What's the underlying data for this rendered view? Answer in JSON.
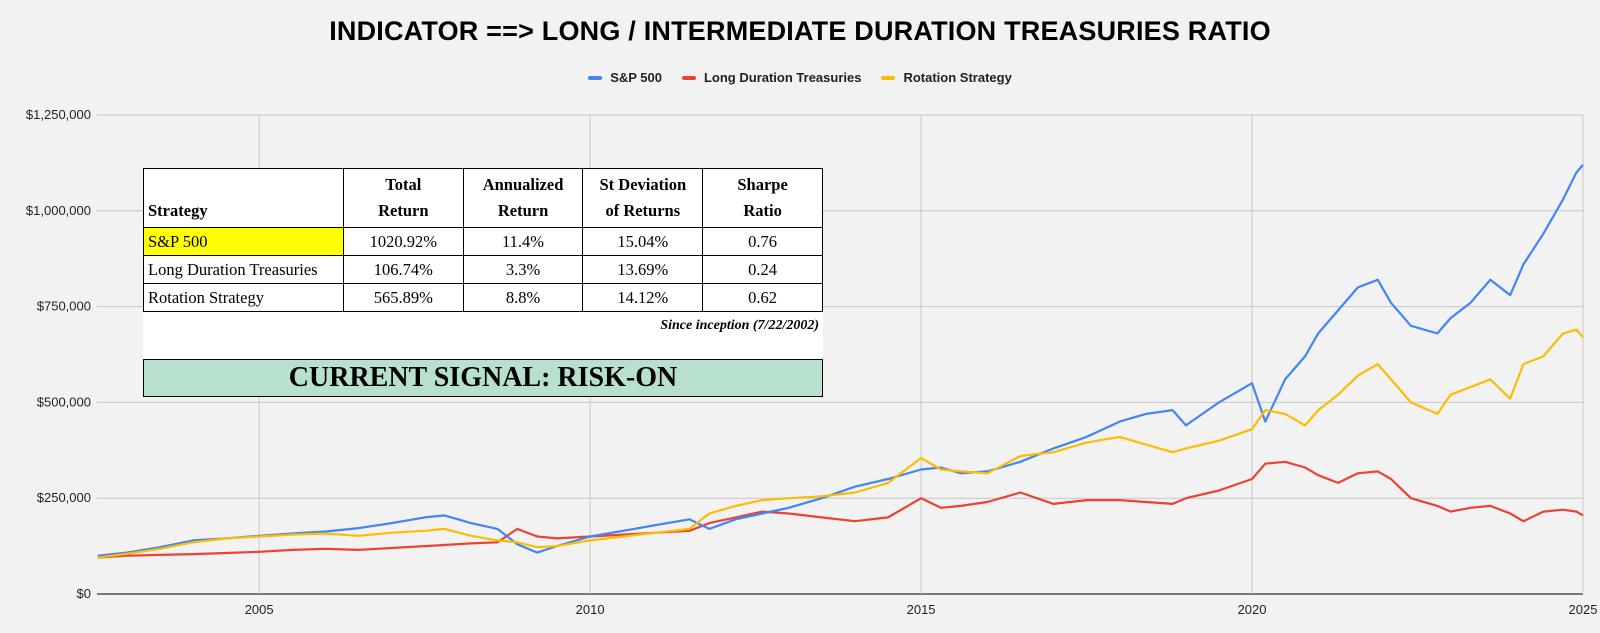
{
  "chart_data": {
    "type": "line",
    "title": "INDICATOR ==> LONG / INTERMEDIATE DURATION TREASURIES RATIO",
    "xlabel": "",
    "ylabel": "",
    "xlim": [
      2002.55,
      2025.0
    ],
    "ylim": [
      0,
      1250000
    ],
    "x_ticks": [
      "2005",
      "2010",
      "2015",
      "2020",
      "2025"
    ],
    "y_ticks": [
      "$0",
      "$250,000",
      "$500,000",
      "$750,000",
      "$1,000,000",
      "$1,250,000"
    ],
    "grid": true,
    "legend_position": "top",
    "x": [
      2002.56,
      2003,
      2003.5,
      2004,
      2004.5,
      2005,
      2005.5,
      2006,
      2006.5,
      2007,
      2007.5,
      2007.8,
      2008.2,
      2008.6,
      2008.9,
      2009.2,
      2009.5,
      2010,
      2010.5,
      2011,
      2011.5,
      2011.8,
      2012.2,
      2012.6,
      2013,
      2013.5,
      2014,
      2014.5,
      2015,
      2015.3,
      2015.6,
      2016,
      2016.5,
      2017,
      2017.5,
      2018,
      2018.4,
      2018.8,
      2019,
      2019.5,
      2020,
      2020.2,
      2020.5,
      2020.8,
      2021,
      2021.3,
      2021.6,
      2021.9,
      2022.1,
      2022.4,
      2022.8,
      2023,
      2023.3,
      2023.6,
      2023.9,
      2024.1,
      2024.4,
      2024.7,
      2024.9,
      2025
    ],
    "series": [
      {
        "name": "S&P 500",
        "color": "#4285f4",
        "values": [
          100000,
          108000,
          122000,
          140000,
          145000,
          152000,
          158000,
          163000,
          172000,
          185000,
          200000,
          205000,
          185000,
          170000,
          130000,
          108000,
          125000,
          150000,
          165000,
          180000,
          195000,
          170000,
          195000,
          210000,
          225000,
          250000,
          280000,
          300000,
          325000,
          330000,
          315000,
          320000,
          345000,
          380000,
          410000,
          450000,
          470000,
          480000,
          440000,
          500000,
          550000,
          450000,
          560000,
          620000,
          680000,
          740000,
          800000,
          820000,
          760000,
          700000,
          680000,
          720000,
          760000,
          820000,
          780000,
          860000,
          940000,
          1030000,
          1100000,
          1120000
        ]
      },
      {
        "name": "Long Duration Treasuries",
        "color": "#ea4335",
        "values": [
          95000,
          100000,
          102000,
          104000,
          107000,
          110000,
          115000,
          118000,
          115000,
          120000,
          125000,
          128000,
          132000,
          135000,
          170000,
          150000,
          145000,
          150000,
          155000,
          160000,
          165000,
          185000,
          200000,
          215000,
          210000,
          200000,
          190000,
          200000,
          250000,
          225000,
          230000,
          240000,
          265000,
          235000,
          245000,
          245000,
          240000,
          235000,
          250000,
          270000,
          300000,
          340000,
          345000,
          330000,
          310000,
          290000,
          315000,
          320000,
          300000,
          250000,
          230000,
          215000,
          225000,
          230000,
          210000,
          190000,
          215000,
          220000,
          215000,
          205000
        ]
      },
      {
        "name": "Rotation Strategy",
        "color": "#fbbc04",
        "values": [
          95000,
          105000,
          118000,
          135000,
          145000,
          150000,
          155000,
          158000,
          152000,
          160000,
          165000,
          170000,
          152000,
          140000,
          135000,
          122000,
          125000,
          140000,
          150000,
          160000,
          170000,
          210000,
          230000,
          245000,
          250000,
          255000,
          265000,
          290000,
          355000,
          325000,
          320000,
          315000,
          360000,
          370000,
          395000,
          410000,
          390000,
          370000,
          380000,
          400000,
          430000,
          480000,
          470000,
          440000,
          480000,
          520000,
          570000,
          600000,
          560000,
          500000,
          470000,
          520000,
          540000,
          560000,
          510000,
          600000,
          620000,
          680000,
          690000,
          670000
        ]
      }
    ]
  },
  "table": {
    "headers": {
      "strategy": "Strategy",
      "total_1": "Total",
      "total_2": "Return",
      "annual_1": "Annualized",
      "annual_2": "Return",
      "stdev_1": "St Deviation",
      "stdev_2": "of Returns",
      "sharpe_1": "Sharpe",
      "sharpe_2": "Ratio"
    },
    "rows": [
      {
        "strategy": "S&P 500",
        "total": "1020.92%",
        "annual": "11.4%",
        "stdev": "15.04%",
        "sharpe": "0.76"
      },
      {
        "strategy": "Long Duration Treasuries",
        "total": "106.74%",
        "annual": "3.3%",
        "stdev": "13.69%",
        "sharpe": "0.24"
      },
      {
        "strategy": "Rotation Strategy",
        "total": "565.89%",
        "annual": "8.8%",
        "stdev": "14.12%",
        "sharpe": "0.62"
      }
    ],
    "since": "Since inception (7/22/2002)",
    "signal": "CURRENT SIGNAL: RISK-ON",
    "highlight_color": "#ffff00",
    "signal_color": "#b7e1cd"
  }
}
